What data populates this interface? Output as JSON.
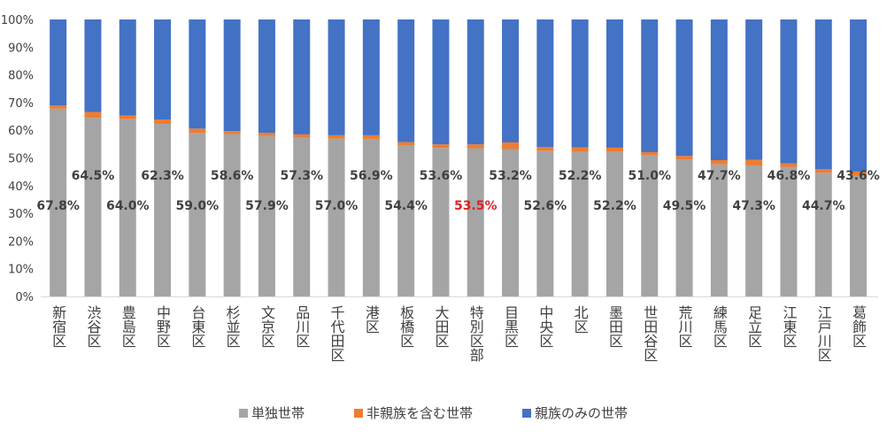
{
  "chart_data": {
    "type": "bar",
    "stacked": true,
    "percent": true,
    "categories": [
      "新宿区",
      "渋谷区",
      "豊島区",
      "中野区",
      "台東区",
      "杉並区",
      "文京区",
      "品川区",
      "千代田区",
      "港区",
      "板橋区",
      "大田区",
      "特別区部",
      "目黒区",
      "中央区",
      "北区",
      "墨田区",
      "世田谷区",
      "荒川区",
      "練馬区",
      "足立区",
      "江東区",
      "江戸川区",
      "葛飾区"
    ],
    "series": [
      {
        "name": "単独世帯",
        "color": "#a5a5a5",
        "values": [
          67.8,
          64.5,
          64.0,
          62.3,
          59.0,
          58.6,
          57.9,
          57.3,
          57.0,
          56.9,
          54.4,
          53.6,
          53.5,
          53.2,
          52.6,
          52.2,
          52.2,
          51.0,
          49.5,
          47.7,
          47.3,
          46.8,
          44.7,
          43.6
        ]
      },
      {
        "name": "非親族を含む世帯",
        "color": "#ed7d31",
        "values": [
          1.2,
          2.1,
          1.3,
          1.6,
          1.6,
          1.1,
          1.2,
          1.2,
          1.2,
          1.3,
          1.3,
          1.3,
          1.4,
          2.4,
          1.4,
          1.6,
          1.5,
          1.1,
          1.2,
          1.5,
          2.0,
          1.2,
          1.2,
          1.5
        ]
      },
      {
        "name": "親族のみの世帯",
        "color": "#4472c4",
        "values": [
          31.0,
          33.4,
          34.7,
          36.1,
          39.4,
          40.3,
          40.9,
          41.5,
          41.8,
          41.8,
          44.3,
          45.1,
          45.1,
          44.4,
          46.0,
          46.2,
          46.3,
          47.9,
          49.3,
          50.8,
          50.7,
          52.0,
          54.1,
          54.9
        ]
      }
    ],
    "data_labels": [
      "67.8%",
      "64.5%",
      "64.0%",
      "62.3%",
      "59.0%",
      "58.6%",
      "57.9%",
      "57.3%",
      "57.0%",
      "56.9%",
      "54.4%",
      "53.6%",
      "53.5%",
      "53.2%",
      "52.6%",
      "52.2%",
      "52.2%",
      "51.0%",
      "49.5%",
      "47.7%",
      "47.3%",
      "46.8%",
      "44.7%",
      "43.6%"
    ],
    "highlight_index": 12,
    "highlight_color": "#e02020",
    "yticks": [
      "0%",
      "10%",
      "20%",
      "30%",
      "40%",
      "50%",
      "60%",
      "70%",
      "80%",
      "90%",
      "100%"
    ],
    "ylim": [
      0,
      100
    ],
    "grid": false,
    "legend_position": "bottom"
  }
}
